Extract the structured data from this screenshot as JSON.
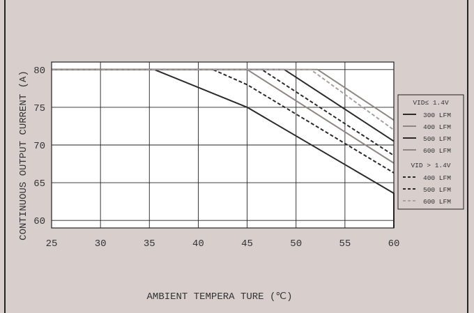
{
  "colors": {
    "background": "#d8cfcc",
    "border": "#222222",
    "plot_background": "#ffffff",
    "dark_line": "#2a2a2a",
    "gray_line": "#8f8584",
    "light_gray_line": "#aaa09f"
  },
  "chart_data": {
    "type": "line",
    "title": "",
    "xlabel": "AMBIENT TEMPERA TURE (℃)",
    "ylabel": "CONTINUOUS OUTPUT CURRENT (A)",
    "xlim": [
      25,
      60
    ],
    "ylim": [
      59,
      81
    ],
    "xticks": [
      "25",
      "30",
      "35",
      "40",
      "45",
      "50",
      "55",
      "60"
    ],
    "yticks": [
      "60",
      "65",
      "70",
      "75",
      "80"
    ],
    "grid": true,
    "legend_position": "right",
    "legend_groups": [
      {
        "header": "VID≤ 1.4V",
        "items": [
          {
            "label": "300 LFM",
            "style": "solid",
            "color": "#2a2a2a"
          },
          {
            "label": "400 LFM",
            "style": "solid",
            "color": "#8f8584"
          },
          {
            "label": "500 LFM",
            "style": "solid",
            "color": "#2a2a2a"
          },
          {
            "label": "600 LFM",
            "style": "solid",
            "color": "#8f8584"
          }
        ]
      },
      {
        "header": "VID > 1.4V",
        "items": [
          {
            "label": "400 LFM",
            "style": "dashed",
            "color": "#2a2a2a"
          },
          {
            "label": "500 LFM",
            "style": "dashed",
            "color": "#2a2a2a"
          },
          {
            "label": "600 LFM",
            "style": "dashed",
            "color": "#aaa09f"
          }
        ]
      }
    ],
    "series": [
      {
        "group": "VID≤ 1.4V",
        "label": "300 LFM",
        "style": "solid",
        "color": "#2a2a2a",
        "x": [
          25,
          35.5,
          45,
          60,
          60
        ],
        "y": [
          80,
          80,
          75,
          63.6,
          59
        ]
      },
      {
        "group": "VID≤ 1.4V",
        "label": "400 LFM",
        "style": "solid",
        "color": "#8f8584",
        "x": [
          25,
          45,
          60
        ],
        "y": [
          80,
          80,
          67.6
        ]
      },
      {
        "group": "VID≤ 1.4V",
        "label": "500 LFM",
        "style": "solid",
        "color": "#2a2a2a",
        "x": [
          25,
          48.8,
          60
        ],
        "y": [
          80,
          80,
          70.5
        ]
      },
      {
        "group": "VID≤ 1.4V",
        "label": "600 LFM",
        "style": "solid",
        "color": "#8f8584",
        "x": [
          25,
          52.2,
          60
        ],
        "y": [
          80,
          80,
          73.3
        ]
      },
      {
        "group": "VID > 1.4V",
        "label": "400 LFM",
        "style": "dashed",
        "color": "#2a2a2a",
        "x": [
          25,
          41.5,
          45,
          60
        ],
        "y": [
          80,
          80,
          78,
          66.3
        ]
      },
      {
        "group": "VID > 1.4V",
        "label": "500 LFM",
        "style": "dashed",
        "color": "#2a2a2a",
        "x": [
          25,
          46.5,
          60
        ],
        "y": [
          80,
          80,
          68.6
        ]
      },
      {
        "group": "VID > 1.4V",
        "label": "600 LFM",
        "style": "dashed",
        "color": "#aaa09f",
        "x": [
          25,
          51.5,
          60
        ],
        "y": [
          80,
          80,
          72
        ]
      }
    ]
  }
}
